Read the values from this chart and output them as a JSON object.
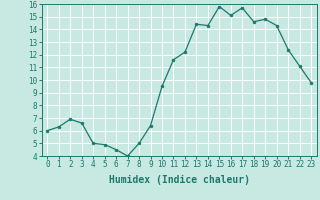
{
  "x": [
    0,
    1,
    2,
    3,
    4,
    5,
    6,
    7,
    8,
    9,
    10,
    11,
    12,
    13,
    14,
    15,
    16,
    17,
    18,
    19,
    20,
    21,
    22,
    23
  ],
  "y": [
    6.0,
    6.3,
    6.9,
    6.6,
    5.0,
    4.9,
    4.5,
    4.0,
    5.0,
    6.4,
    9.5,
    11.6,
    12.2,
    14.4,
    14.3,
    15.8,
    15.1,
    15.7,
    14.6,
    14.8,
    14.3,
    12.4,
    11.1,
    9.8
  ],
  "line_color": "#1a7a6e",
  "marker": "o",
  "marker_size": 2.0,
  "bg_color": "#c8e8e2",
  "grid_color": "#ffffff",
  "xlabel": "Humidex (Indice chaleur)",
  "ylim": [
    4,
    16
  ],
  "xlim": [
    -0.5,
    23.5
  ],
  "yticks": [
    4,
    5,
    6,
    7,
    8,
    9,
    10,
    11,
    12,
    13,
    14,
    15,
    16
  ],
  "xticks": [
    0,
    1,
    2,
    3,
    4,
    5,
    6,
    7,
    8,
    9,
    10,
    11,
    12,
    13,
    14,
    15,
    16,
    17,
    18,
    19,
    20,
    21,
    22,
    23
  ],
  "xtick_labels": [
    "0",
    "1",
    "2",
    "3",
    "4",
    "5",
    "6",
    "7",
    "8",
    "9",
    "10",
    "11",
    "12",
    "13",
    "14",
    "15",
    "16",
    "17",
    "18",
    "19",
    "20",
    "21",
    "22",
    "23"
  ],
  "label_fontsize": 7.0,
  "tick_fontsize": 5.5
}
